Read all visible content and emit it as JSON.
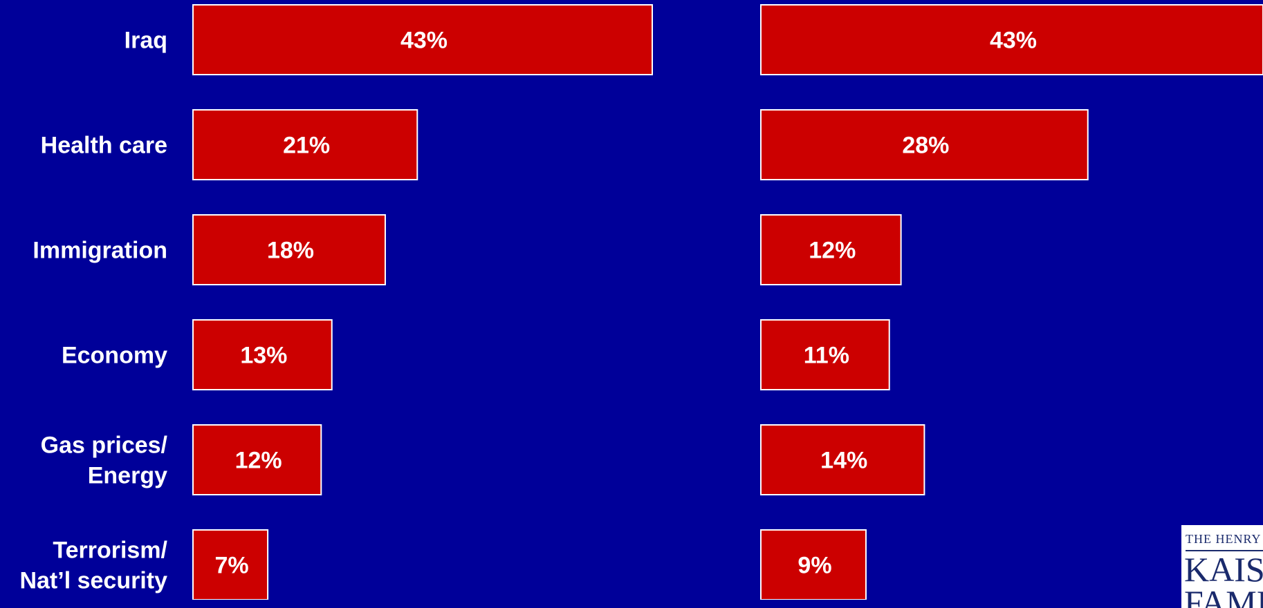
{
  "chart_data": [
    {
      "type": "bar",
      "orientation": "horizontal",
      "categories": [
        "Iraq",
        "Health care",
        "Immigration",
        "Economy",
        "Gas prices/ Energy",
        "Terrorism/ Nat’l security"
      ],
      "category_lines": [
        [
          "Iraq"
        ],
        [
          "Health care"
        ],
        [
          "Immigration"
        ],
        [
          "Economy"
        ],
        [
          "Gas prices/",
          "Energy"
        ],
        [
          "Terrorism/",
          "Nat’l security"
        ]
      ],
      "values": [
        43,
        21,
        18,
        13,
        12,
        7
      ],
      "value_labels": [
        "43%",
        "21%",
        "18%",
        "13%",
        "12%",
        "7%"
      ],
      "xlim": [
        0,
        43
      ],
      "grid": false,
      "colors": {
        "bar": "#cc0000",
        "bar_outline": "#ffffff",
        "text": "#ffffff",
        "background": "#000099"
      }
    },
    {
      "type": "bar",
      "orientation": "horizontal",
      "categories": [
        "Iraq",
        "Health care",
        "Immigration",
        "Economy",
        "Gas prices/ Energy",
        "Terrorism/ Nat’l security"
      ],
      "values": [
        43,
        28,
        12,
        11,
        14,
        9
      ],
      "value_labels": [
        "43%",
        "28%",
        "12%",
        "11%",
        "14%",
        "9%"
      ],
      "xlim": [
        0,
        43
      ],
      "grid": false,
      "colors": {
        "bar": "#cc0000",
        "bar_outline": "#ffffff",
        "text": "#ffffff",
        "background": "#000099"
      }
    }
  ],
  "logo": {
    "line1": "THE HENRY J.",
    "line2": "KAISER",
    "line3": "FAMILY"
  }
}
